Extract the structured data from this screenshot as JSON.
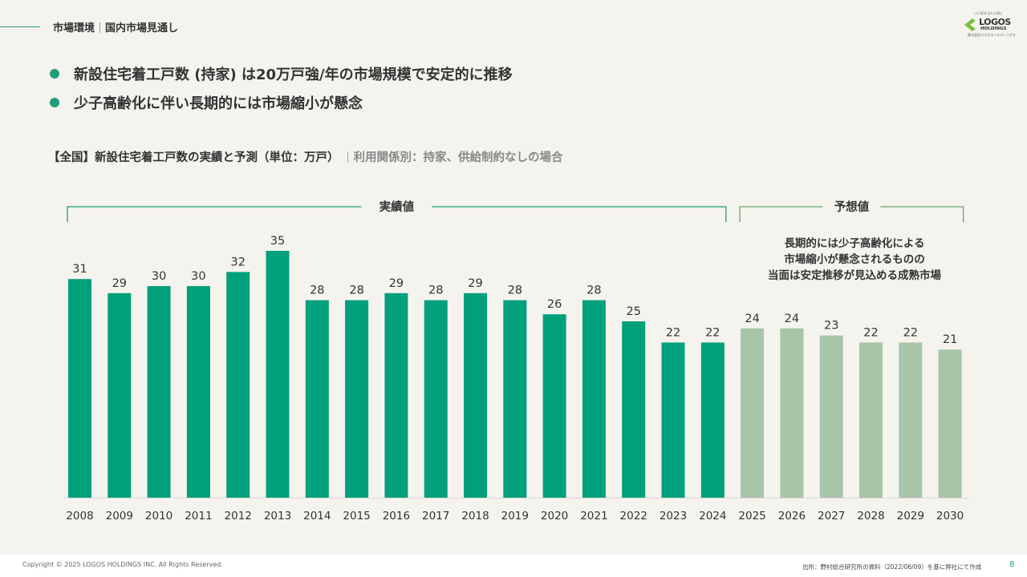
{
  "header": {
    "section": "市場環境",
    "subsection": "国内市場見通し"
  },
  "logo": {
    "tagline": "いい家を当たり前に",
    "name": "LOGOS",
    "holdings": "HOLDINGS",
    "company": "株式会社ロゴスホールディングス"
  },
  "bullets": [
    "新設住宅着工戸数 (持家) は20万戸強/年の市場規模で安定的に推移",
    "少子高齢化に伴い長期的には市場縮小が懸念"
  ],
  "chart_heading": {
    "title": "【全国】新設住宅着工戸数の実績と予測（単位：万戸）",
    "condition": "利用関係別：持家、供給制約なしの場合"
  },
  "chart_data": {
    "type": "bar",
    "title": "【全国】新設住宅着工戸数の実績と予測（単位：万戸）",
    "ylabel": "万戸",
    "ylim": [
      0,
      35
    ],
    "categories": [
      "2008",
      "2009",
      "2010",
      "2011",
      "2012",
      "2013",
      "2014",
      "2015",
      "2016",
      "2017",
      "2018",
      "2019",
      "2020",
      "2021",
      "2022",
      "2023",
      "2024",
      "2025",
      "2026",
      "2027",
      "2028",
      "2029",
      "2030"
    ],
    "series": [
      {
        "name": "実績値",
        "color": "#00a07a",
        "values": [
          31,
          29,
          30,
          30,
          32,
          35,
          28,
          28,
          29,
          28,
          29,
          28,
          26,
          28,
          25,
          22,
          22,
          null,
          null,
          null,
          null,
          null,
          null
        ]
      },
      {
        "name": "予想値",
        "color": "#a8c5a8",
        "values": [
          null,
          null,
          null,
          null,
          null,
          null,
          null,
          null,
          null,
          null,
          null,
          null,
          null,
          null,
          null,
          null,
          null,
          24,
          24,
          23,
          22,
          22,
          21
        ]
      }
    ],
    "brackets": [
      {
        "label": "実績値",
        "range": [
          "2008",
          "2024"
        ],
        "color": "#1f9e7a"
      },
      {
        "label": "予想値",
        "range": [
          "2025",
          "2030"
        ],
        "color": "#6aa56a"
      }
    ],
    "annotation": [
      "長期的には少子高齢化による",
      "市場縮小が懸念されるものの",
      "当面は安定推移が見込める成熟市場"
    ]
  },
  "footer": {
    "copyright": "Copyright © 2025 LOGOS HOLDINGS INC. All Rights Reserved.",
    "source": "出所：野村総合研究所の資料（2022/06/09）を基に弊社にて作成",
    "page": "8"
  }
}
